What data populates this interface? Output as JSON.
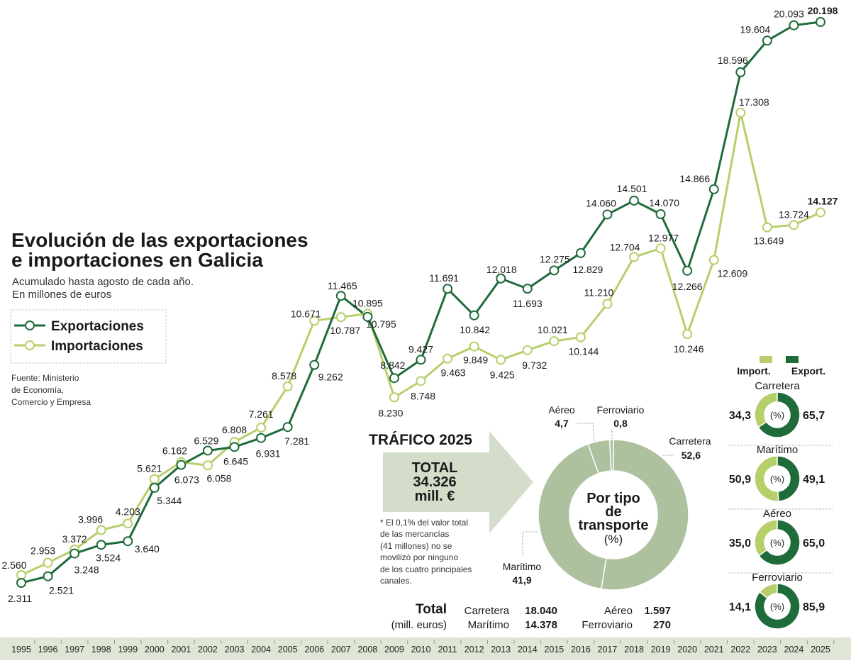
{
  "title_line1": "Evolución de las exportaciones",
  "title_line2": "e importaciones en Galicia",
  "subtitle_line1": "Acumulado hasta agosto de cada año.",
  "subtitle_line2": "En millones de euros",
  "source_line1": "Fuente:  Ministerio",
  "source_line2": " de Economía,",
  "source_line3": "Comercio y Empresa",
  "colors": {
    "exports": "#1f6b3a",
    "imports": "#b6cf6b",
    "donut": "#adc19f",
    "arrow": "#d4ddca",
    "axis_band": "#dfe6d6"
  },
  "chart_data": [
    {
      "type": "line",
      "legend_placement": "left",
      "grid": false,
      "x": [
        1995,
        1996,
        1997,
        1998,
        1999,
        2000,
        2001,
        2002,
        2003,
        2004,
        2005,
        2006,
        2007,
        2008,
        2009,
        2010,
        2011,
        2012,
        2013,
        2014,
        2015,
        2016,
        2017,
        2018,
        2019,
        2020,
        2021,
        2022,
        2023,
        2024,
        2025
      ],
      "x_tick_labels": [
        "1995",
        "1996",
        "1997",
        "1998",
        "1999",
        "2000",
        "2001",
        "2002",
        "2003",
        "2004",
        "2005",
        "2006",
        "2007",
        "2008",
        "2009",
        "2010",
        "2011",
        "2012",
        "2013",
        "2014",
        "2015",
        "2016",
        "2017",
        "2018",
        "2019",
        "2020",
        "2021",
        "2022",
        "2023",
        "2024",
        "2025"
      ],
      "series": [
        {
          "name": "Exportaciones",
          "color": "#1f6b3a",
          "values": [
            2311,
            2521,
            3248,
            3524,
            3640,
            5344,
            6073,
            6529,
            6645,
            6931,
            7281,
            9262,
            11465,
            10795,
            8842,
            9427,
            11691,
            10842,
            12018,
            11693,
            12275,
            12829,
            14060,
            14501,
            14070,
            12266,
            14866,
            18596,
            19604,
            20093,
            20198
          ],
          "labels": [
            "2.311",
            "2.521",
            "3.248",
            "3.524",
            "3.640",
            "5.344",
            "6.073",
            "6.529",
            "6.645",
            "6.931",
            "7.281",
            "9.262",
            "11.465",
            "10.795",
            "8.842",
            "9.427",
            "11.691",
            "10.842",
            "12.018",
            "11.693",
            "12.275",
            "12.829",
            "14.060",
            "14.501",
            "14.070",
            "12.266",
            "14.866",
            "18.596",
            "19.604",
            "20.093",
            "20.198"
          ]
        },
        {
          "name": "Importaciones",
          "color": "#b6cf6b",
          "values": [
            2560,
            2953,
            3372,
            3996,
            4203,
            5621,
            6162,
            6058,
            6808,
            7261,
            8578,
            10671,
            10787,
            10895,
            8230,
            8748,
            9463,
            9849,
            9425,
            9732,
            10021,
            10144,
            11210,
            12704,
            12977,
            10246,
            12609,
            17308,
            13649,
            13724,
            14127
          ],
          "labels": [
            "2.560",
            "2.953",
            "3.372",
            "3.996",
            "4.203",
            "5.621",
            "6.162",
            "6.058",
            "6.808",
            "7.261",
            "8.578",
            "10.671",
            "10.787",
            "10.895",
            "8.230",
            "8.748",
            "9.463",
            "9.849",
            "9.425",
            "9.732",
            "10.021",
            "10.144",
            "11.210",
            "12.704",
            "12.977",
            "10.246",
            "12.609",
            "17.308",
            "13.649",
            "13.724",
            "14.127"
          ]
        }
      ]
    },
    {
      "type": "pie",
      "title": "TRÁFICO 2025",
      "center_text": [
        "Por tipo",
        "de",
        "transporte",
        "(%)"
      ],
      "categories": [
        "Carretera",
        "Marítimo",
        "Aéreo",
        "Ferroviario"
      ],
      "values": [
        52.6,
        41.9,
        4.7,
        0.8
      ],
      "value_labels": [
        "52,6",
        "41,9",
        "4,7",
        "0,8"
      ]
    },
    {
      "type": "pie",
      "legend": [
        "Import.",
        "Export."
      ],
      "center_text": "(%)",
      "donuts": [
        {
          "name": "Carretera",
          "import": 34.3,
          "export": 65.7,
          "import_label": "34,3",
          "export_label": "65,7"
        },
        {
          "name": "Marítimo",
          "import": 50.9,
          "export": 49.1,
          "import_label": "50,9",
          "export_label": "49,1"
        },
        {
          "name": "Aéreo",
          "import": 35.0,
          "export": 65.0,
          "import_label": "35,0",
          "export_label": "65,0"
        },
        {
          "name": "Ferroviario",
          "import": 14.1,
          "export": 85.9,
          "import_label": "14,1",
          "export_label": "85,9"
        }
      ]
    }
  ],
  "traffic": {
    "heading": "TRÁFICO 2025",
    "total_line1": "TOTAL",
    "total_line2": "34.326",
    "total_line3": "mill. €",
    "note": [
      "* El 0,1% del valor total",
      "de las mercancías",
      "(41 millones) no se",
      "movilizó por ninguno",
      "de los cuatro principales",
      "canales."
    ],
    "totals_label": "Total",
    "totals_unit": "(mill. euros)",
    "totals": [
      {
        "name": "Carretera",
        "value": "18.040"
      },
      {
        "name": "Marítimo",
        "value": "14.378"
      },
      {
        "name": "Aéreo",
        "value": "1.597"
      },
      {
        "name": "Ferroviario",
        "value": "270"
      }
    ]
  }
}
